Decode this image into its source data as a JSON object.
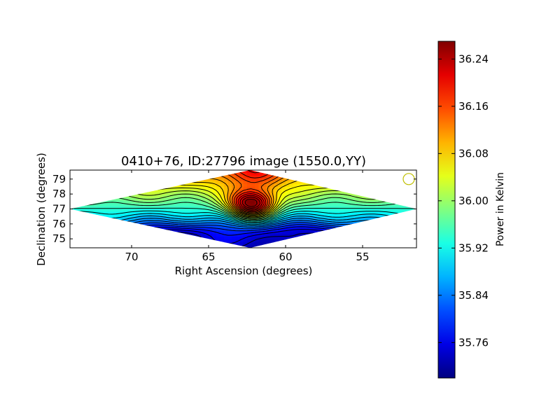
{
  "chart_data": [
    {
      "type": "heatmap",
      "title": "0410+76, ID:27796 image (1550.0,YY)",
      "xlabel": "Right Ascension (degrees)",
      "ylabel": "Declination (degrees)",
      "xlim": [
        74,
        51.5
      ],
      "ylim": [
        74.4,
        79.6
      ],
      "x_reversed": true,
      "xticks": [
        70,
        65,
        60,
        55
      ],
      "yticks": [
        75,
        76,
        77,
        78,
        79
      ],
      "contours": true,
      "colormap": "jet",
      "field_shape": "diamond",
      "field_vertices": [
        [
          74,
          77.0
        ],
        [
          62.3,
          79.6
        ],
        [
          51.5,
          77.0
        ],
        [
          62.3,
          74.4
        ]
      ],
      "beam_marker": {
        "ra": 52,
        "dec": 79.0,
        "color": "#bfbf00"
      },
      "peak": {
        "ra": 62.2,
        "dec": 77.3,
        "value": 36.27
      },
      "minimum_regions": [
        {
          "ra": 67.5,
          "dec": 75.4,
          "value": 35.7
        },
        {
          "ra": 58.8,
          "dec": 75.4,
          "value": 35.74
        }
      ],
      "ridge_dec": 76.5
    },
    {
      "type": "colorbar",
      "label": "Power in Kelvin",
      "range": [
        35.7,
        36.27
      ],
      "ticks": [
        "35.76",
        "35.84",
        "35.92",
        "36.00",
        "36.08",
        "36.16",
        "36.24"
      ],
      "tick_values": [
        35.76,
        35.84,
        35.92,
        36.0,
        36.08,
        36.16,
        36.24
      ],
      "colormap": "jet"
    }
  ]
}
